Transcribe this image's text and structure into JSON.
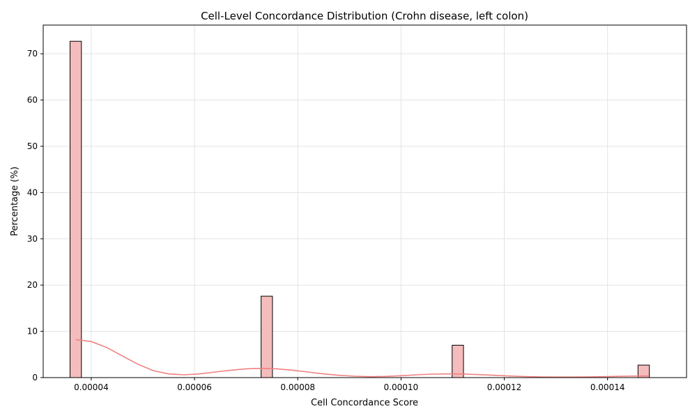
{
  "chart_data": {
    "type": "bar",
    "title": "Cell-Level Concordance Distribution (Crohn disease, left colon)",
    "xlabel": "Cell Concordance Score",
    "ylabel": "Percentage (%)",
    "xlim": [
      3.07e-05,
      0.0001553
    ],
    "ylim": [
      0,
      76.2
    ],
    "grid": true,
    "bar_color": "#f4bcbc",
    "bar_edge_color": "#000000",
    "kde_color": "#f08080",
    "bin_width": 2.2e-06,
    "x_ticks": [
      {
        "value": 4e-05,
        "label": "0.00004"
      },
      {
        "value": 6e-05,
        "label": "0.00006"
      },
      {
        "value": 8e-05,
        "label": "0.00008"
      },
      {
        "value": 0.0001,
        "label": "0.00010"
      },
      {
        "value": 0.00012,
        "label": "0.00012"
      },
      {
        "value": 0.00014,
        "label": "0.00014"
      }
    ],
    "y_ticks": [
      {
        "value": 0,
        "label": "0"
      },
      {
        "value": 10,
        "label": "10"
      },
      {
        "value": 20,
        "label": "20"
      },
      {
        "value": 30,
        "label": "30"
      },
      {
        "value": 40,
        "label": "40"
      },
      {
        "value": 50,
        "label": "50"
      },
      {
        "value": 60,
        "label": "60"
      },
      {
        "value": 70,
        "label": "70"
      }
    ],
    "bars": [
      {
        "x": 3.7e-05,
        "value": 72.7
      },
      {
        "x": 7.4e-05,
        "value": 17.6
      },
      {
        "x": 0.000111,
        "value": 7.0
      },
      {
        "x": 0.000147,
        "value": 2.7
      }
    ],
    "kde": {
      "x": [
        3.7e-05,
        4e-05,
        4.3e-05,
        4.6e-05,
        4.9e-05,
        5.2e-05,
        5.5e-05,
        5.8e-05,
        6.1e-05,
        6.4e-05,
        6.7e-05,
        7e-05,
        7.3e-05,
        7.6e-05,
        7.9e-05,
        8.2e-05,
        8.5e-05,
        8.8e-05,
        9.1e-05,
        9.4e-05,
        9.7e-05,
        0.0001,
        0.000103,
        0.000106,
        0.000109,
        0.000112,
        0.000115,
        0.000118,
        0.000121,
        0.000124,
        0.000127,
        0.00013,
        0.000133,
        0.000136,
        0.000139,
        0.000142,
        0.000145,
        0.000148
      ],
      "y": [
        8.2,
        7.8,
        6.5,
        4.7,
        2.9,
        1.5,
        0.8,
        0.6,
        0.8,
        1.2,
        1.6,
        1.9,
        2.0,
        1.9,
        1.6,
        1.2,
        0.8,
        0.5,
        0.3,
        0.2,
        0.25,
        0.4,
        0.6,
        0.75,
        0.8,
        0.78,
        0.65,
        0.5,
        0.35,
        0.22,
        0.15,
        0.12,
        0.12,
        0.15,
        0.2,
        0.27,
        0.33,
        0.35
      ]
    }
  }
}
